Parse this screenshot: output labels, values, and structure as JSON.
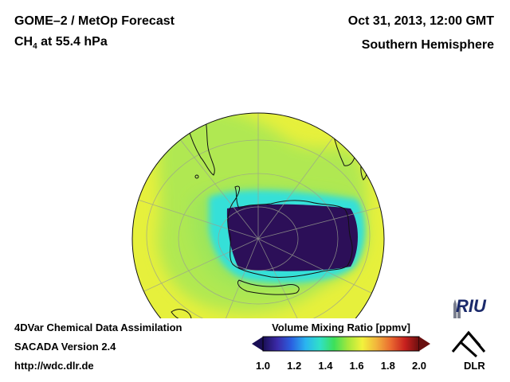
{
  "header": {
    "title": "GOME–2 / MetOp Forecast",
    "species_main": "CH",
    "species_sub": "4",
    "species_rest": " at 55.4 hPa",
    "datetime": "Oct 31, 2013, 12:00 GMT",
    "hemisphere": "Southern Hemisphere"
  },
  "footer": {
    "line1": "4DVar Chemical Data Assimilation",
    "line2": "SACADA Version 2.4",
    "line3": "http://wdc.dlr.de"
  },
  "colorbar": {
    "title": "Volume Mixing Ratio [ppmv]",
    "min": 1.0,
    "max": 2.0,
    "ticks": [
      "1.0",
      "1.2",
      "1.4",
      "1.6",
      "1.8",
      "2.0"
    ],
    "colors": [
      "#1a0f55",
      "#3b2aa8",
      "#2a60e0",
      "#2ab4f0",
      "#30e0c8",
      "#3ce05a",
      "#a6e83c",
      "#f2f23c",
      "#f2b43c",
      "#ea6a30",
      "#c8201e",
      "#6a0f0f"
    ]
  },
  "logos": {
    "riu": "RIU",
    "dlr": "DLR"
  },
  "map": {
    "background_color": "#e6f03c",
    "ring_color": "#9ee65a",
    "halo_color": "#34e0d8",
    "depletion_color": "#2c0f58"
  }
}
